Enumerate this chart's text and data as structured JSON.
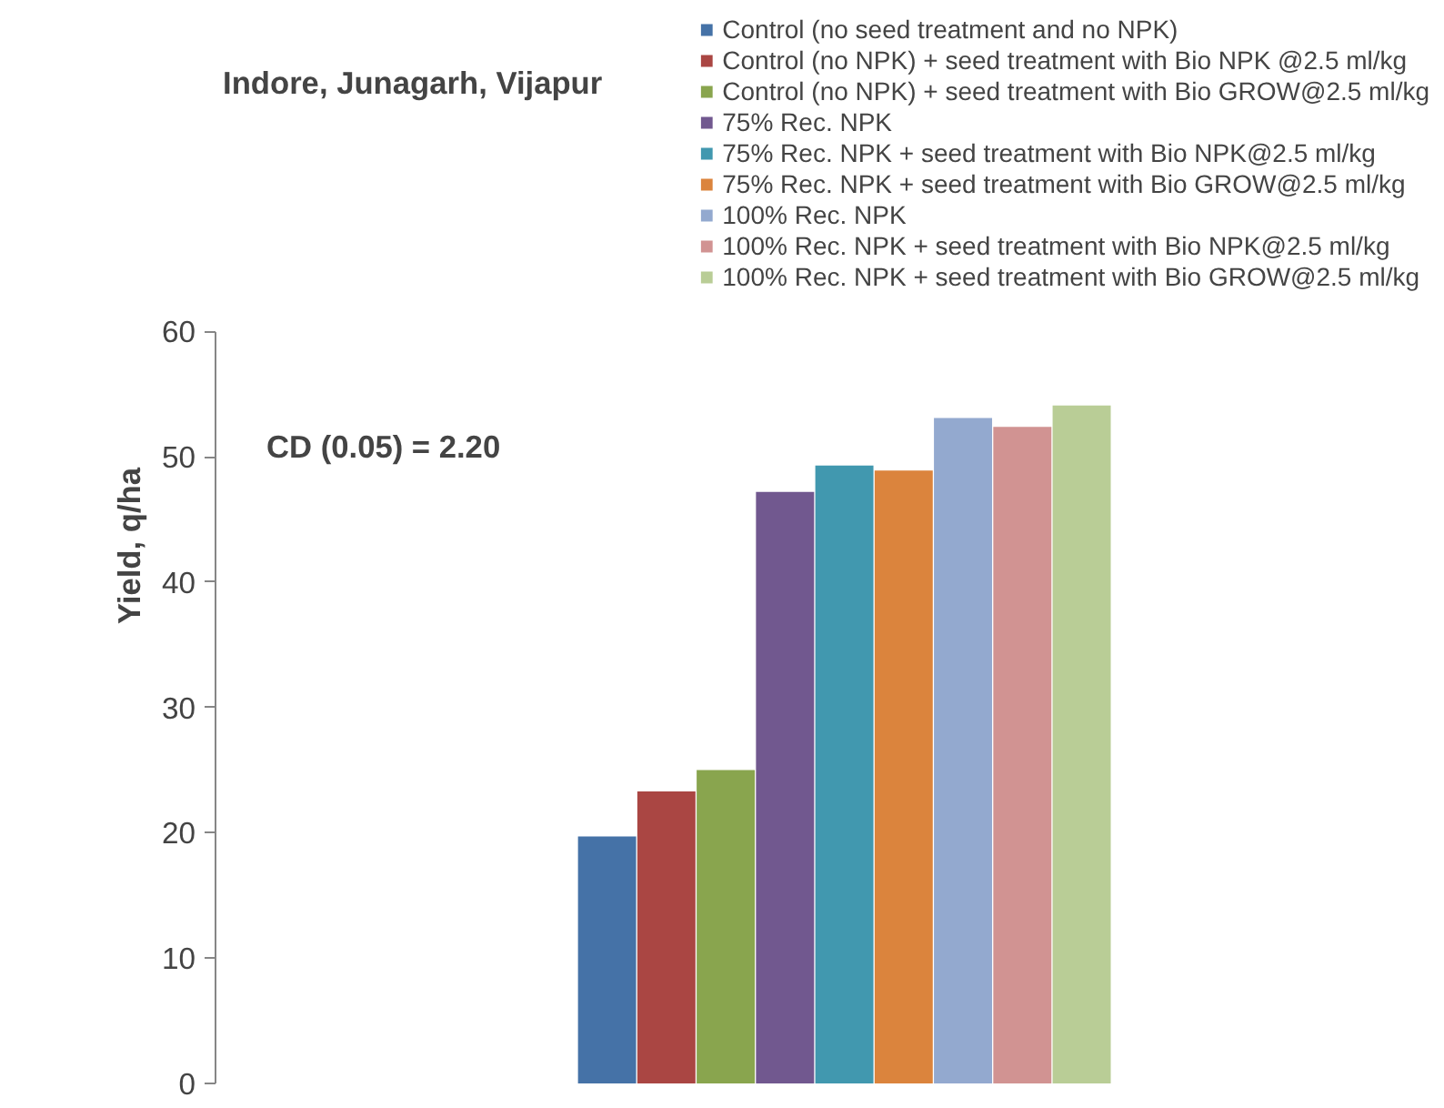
{
  "chart_data": {
    "type": "bar",
    "title": "Indore, Junagarh, Vijapur",
    "ylabel": "Yield, q/ha",
    "annotations": [
      "CD (0.05) = 2.20"
    ],
    "categories": [
      null
    ],
    "series": [
      {
        "name": "Control (no seed treatment and no NPK)",
        "color": "#4572a7",
        "values": [
          19.7
        ]
      },
      {
        "name": "Control (no NPK) + seed treatment with Bio NPK @2.5 ml/kg",
        "color": "#aa4643",
        "values": [
          23.3
        ]
      },
      {
        "name": "Control (no NPK) + seed treatment with Bio GROW@2.5 ml/kg",
        "color": "#89a54e",
        "values": [
          25.0
        ]
      },
      {
        "name": "75% Rec. NPK",
        "color": "#71588f",
        "values": [
          47.2
        ]
      },
      {
        "name": "75% Rec. NPK + seed treatment with Bio NPK@2.5 ml/kg",
        "color": "#4198af",
        "values": [
          49.3
        ]
      },
      {
        "name": "75% Rec. NPK + seed treatment with Bio GROW@2.5 ml/kg",
        "color": "#db843d",
        "values": [
          48.9
        ]
      },
      {
        "name": "100% Rec. NPK",
        "color": "#93a9cf",
        "values": [
          53.1
        ]
      },
      {
        "name": "100% Rec. NPK + seed treatment with Bio NPK@2.5 ml/kg",
        "color": "#d19392",
        "values": [
          52.4
        ]
      },
      {
        "name": "100% Rec. NPK + seed treatment with Bio GROW@2.5 ml/kg",
        "color": "#b9cd96",
        "values": [
          54.1
        ]
      }
    ],
    "ylim": [
      0,
      60
    ],
    "yticks": [
      0,
      10,
      20,
      30,
      40,
      50,
      60
    ],
    "grid": false,
    "legend": "top right",
    "tick_labels": "y"
  }
}
